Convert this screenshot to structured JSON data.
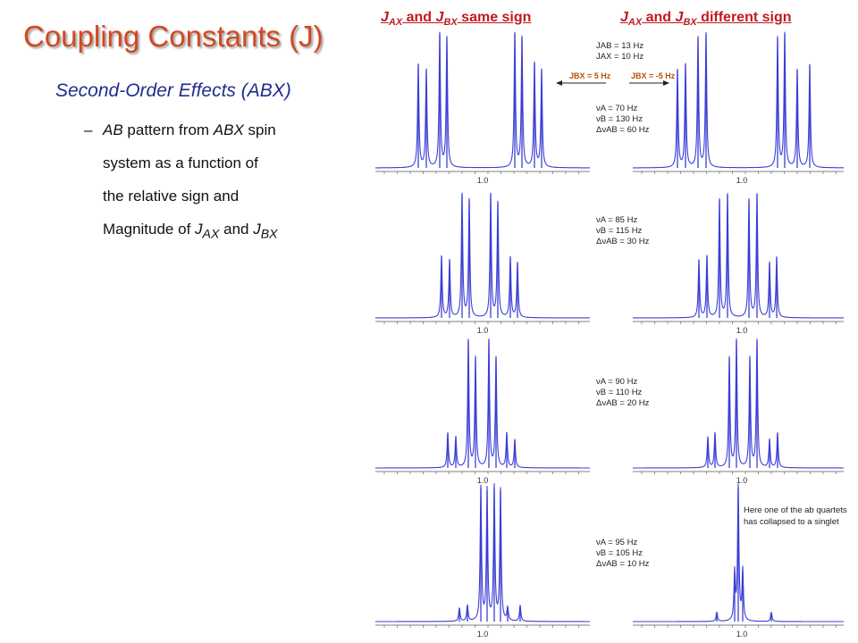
{
  "slide": {
    "title": "Coupling Constants (J)",
    "subtitle": "Second-Order Effects (ABX)",
    "bullet_dash": "–",
    "bullet_lines": [
      "AB pattern from ABX spin",
      "system as a function of",
      "the relative sign and",
      "Magnitude of J"
    ],
    "bullet_parts": {
      "ab": "AB",
      "pattern_from": " pattern from ",
      "abx": "ABX",
      "spin": " spin",
      "magnitude_of": "Magnitude  of ",
      "j": "J",
      "ax": "AX",
      "and": " and ",
      "bx": "BX"
    }
  },
  "columns": {
    "same": {
      "j1": "J",
      "s1": "AX",
      "mid": " and ",
      "j2": "J",
      "s2": "BX",
      "tail": " same sign"
    },
    "diff": {
      "j1": "J",
      "s1": "AX",
      "mid": " and ",
      "j2": "J",
      "s2": "BX",
      "tail": " different sign"
    }
  },
  "coupling": {
    "jab": "JAB = 13 Hz",
    "jax": "JAX = 10 Hz",
    "jbx_left": "JBX = 5 Hz",
    "jbx_right": "JBX = -5 Hz",
    "arrow_color": "#222222",
    "label_color": "#b8520e"
  },
  "rows": [
    {
      "nu_a": "νA = 70 Hz",
      "nu_b": "νB = 130 Hz",
      "dnu": "ΔνAB = 60 Hz",
      "axis_label": "1.0"
    },
    {
      "nu_a": "νA = 85 Hz",
      "nu_b": "νB = 115 Hz",
      "dnu": "ΔνAB = 30 Hz",
      "axis_label": "1.0"
    },
    {
      "nu_a": "νA = 90 Hz",
      "nu_b": "νB = 110 Hz",
      "dnu": "ΔνAB = 20 Hz",
      "axis_label": "1.0"
    },
    {
      "nu_a": "νA = 95 Hz",
      "nu_b": "νB = 105 Hz",
      "dnu": "ΔνAB = 10 Hz",
      "axis_label": "1.0"
    }
  ],
  "note": "Here one of the ab quartets has collapsed to a singlet",
  "spectra": {
    "line_color": "#3b3fd6",
    "peaks": {
      "same": [
        [
          [
            468,
            0.77
          ],
          [
            477,
            0.73
          ],
          [
            492,
            1.0
          ],
          [
            500,
            0.97
          ],
          [
            576,
            1.0
          ],
          [
            584,
            0.97
          ],
          [
            598,
            0.78
          ],
          [
            606,
            0.73
          ]
        ],
        [
          [
            494,
            0.46
          ],
          [
            503,
            0.43
          ],
          [
            517,
            0.92
          ],
          [
            525,
            0.88
          ],
          [
            549,
            0.92
          ],
          [
            557,
            0.86
          ],
          [
            571,
            0.45
          ],
          [
            579,
            0.41
          ]
        ],
        [
          [
            501,
            0.26
          ],
          [
            510,
            0.23
          ],
          [
            524,
            0.95
          ],
          [
            532,
            0.82
          ],
          [
            547,
            0.95
          ],
          [
            555,
            0.82
          ],
          [
            567,
            0.26
          ],
          [
            576,
            0.21
          ]
        ],
        [
          [
            514,
            0.1
          ],
          [
            523,
            0.12
          ],
          [
            538,
            1.0
          ],
          [
            545,
            0.98
          ],
          [
            553,
            1.0
          ],
          [
            560,
            0.98
          ],
          [
            568,
            0.1
          ],
          [
            582,
            0.12
          ]
        ]
      ],
      "diff": [
        [
          [
            758,
            0.73
          ],
          [
            767,
            0.77
          ],
          [
            781,
            0.97
          ],
          [
            790,
            1.0
          ],
          [
            870,
            0.97
          ],
          [
            878,
            1.0
          ],
          [
            892,
            0.73
          ],
          [
            906,
            0.77
          ]
        ],
        [
          [
            782,
            0.43
          ],
          [
            791,
            0.46
          ],
          [
            805,
            0.88
          ],
          [
            814,
            0.92
          ],
          [
            838,
            0.88
          ],
          [
            847,
            0.92
          ],
          [
            861,
            0.41
          ],
          [
            869,
            0.45
          ]
        ],
        [
          [
            792,
            0.23
          ],
          [
            800,
            0.26
          ],
          [
            816,
            0.82
          ],
          [
            824,
            0.95
          ],
          [
            839,
            0.82
          ],
          [
            847,
            0.95
          ],
          [
            861,
            0.21
          ],
          [
            870,
            0.26
          ]
        ],
        [
          [
            802,
            0.07
          ],
          [
            822,
            0.36
          ],
          [
            826,
            1.0
          ],
          [
            831,
            0.38
          ],
          [
            863,
            0.07
          ]
        ]
      ]
    }
  }
}
